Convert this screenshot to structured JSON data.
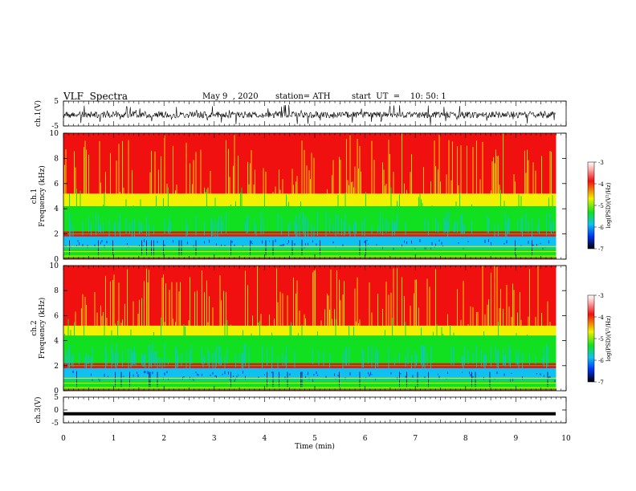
{
  "header": {
    "title": "VLF  Spectra",
    "date": "May 9  , 2020",
    "station": "station= ATH",
    "start": "start  UT  =    10: 50: 1"
  },
  "chart_data": [
    {
      "type": "line",
      "panel": "ch1-waveform",
      "ylabel": "ch.1(V)",
      "ylim": [
        -5,
        5
      ],
      "yticks": [
        "5",
        "-5"
      ],
      "xlim": [
        0,
        10
      ],
      "baseline": -0.5,
      "color": "#000000"
    },
    {
      "type": "heatmap",
      "panel": "ch1-spectrogram",
      "ylabel": "ch.1\nFrequency  (kHz)",
      "ylim": [
        0,
        10
      ],
      "yticks": [
        "0",
        "2",
        "4",
        "6",
        "8",
        "10"
      ],
      "xlim": [
        0,
        9.8
      ],
      "boundaries_khz": {
        "low_noise_band": [
          0.8,
          1.8
        ],
        "green_upper": 4.2
      },
      "colorbar": {
        "label": "log(PSD)(V²/Hz)",
        "range": [
          -7,
          -3
        ],
        "ticks": [
          "-3",
          "-4",
          "-5",
          "-6",
          "-7"
        ]
      }
    },
    {
      "type": "heatmap",
      "panel": "ch2-spectrogram",
      "ylabel": "ch.2\nFrequency  (kHz)",
      "ylim": [
        0,
        10
      ],
      "yticks": [
        "0",
        "2",
        "4",
        "6",
        "8",
        "10"
      ],
      "xlim": [
        0,
        9.8
      ],
      "boundaries_khz": {
        "low_noise_band": [
          0.8,
          1.8
        ],
        "green_upper": 4.4
      },
      "colorbar": {
        "label": "log(PSD)(V²/Hz)",
        "range": [
          -7,
          -3
        ],
        "ticks": [
          "-3",
          "-4",
          "-5",
          "-6",
          "-7"
        ]
      }
    },
    {
      "type": "line",
      "panel": "ch3-waveform",
      "ylabel": "ch.3(V)",
      "ylim": [
        -5,
        5
      ],
      "yticks": [
        "5",
        "0",
        "-5"
      ],
      "xlim": [
        0,
        10
      ],
      "constant_value": -1.5,
      "color": "#000000"
    }
  ],
  "x_axis": {
    "label": "Time  (min)",
    "ticks": [
      "0",
      "1",
      "2",
      "3",
      "4",
      "5",
      "6",
      "7",
      "8",
      "9",
      "10"
    ]
  },
  "colors": {
    "red": "#f01010",
    "yellow": "#f0f000",
    "green": "#10e020",
    "cyan": "#10c0f0",
    "blue": "#0030f0",
    "navy": "#000080"
  }
}
